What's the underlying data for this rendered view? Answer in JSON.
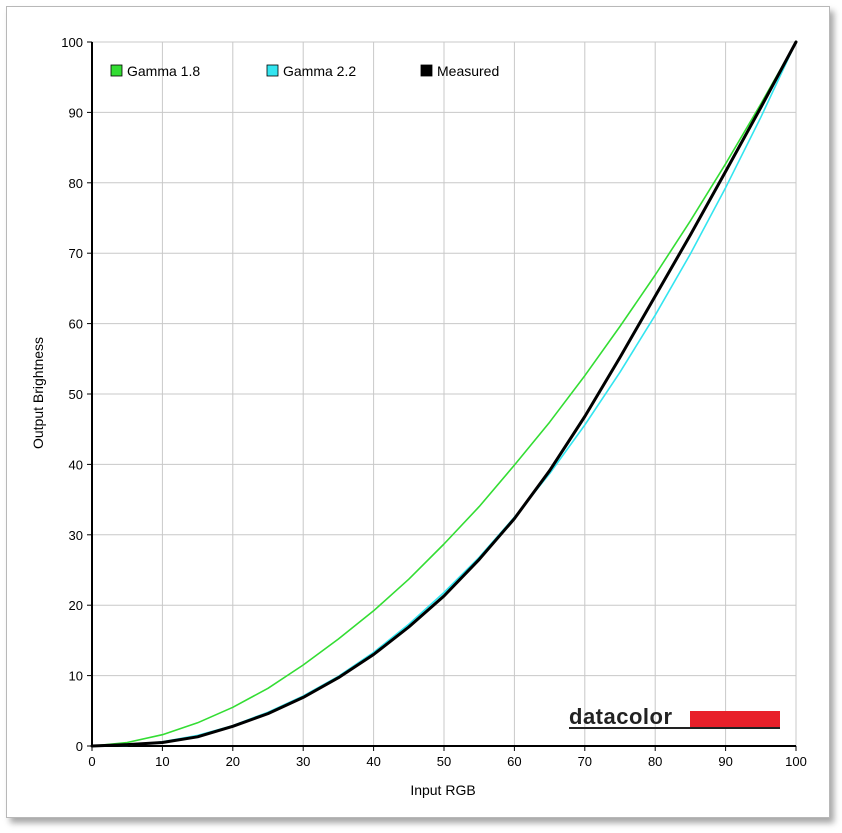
{
  "chart_data": {
    "type": "line",
    "title": "",
    "xlabel": "Input RGB",
    "ylabel": "Output Brightness",
    "xlim": [
      0,
      100
    ],
    "ylim": [
      0,
      100
    ],
    "xticks": [
      0,
      10,
      20,
      30,
      40,
      50,
      60,
      70,
      80,
      90,
      100
    ],
    "yticks": [
      0,
      10,
      20,
      30,
      40,
      50,
      60,
      70,
      80,
      90,
      100
    ],
    "grid": true,
    "legend_position": "top-left",
    "series": [
      {
        "name": "Gamma 1.8",
        "color": "#33dd33",
        "x": [
          0,
          5,
          10,
          15,
          20,
          25,
          30,
          35,
          40,
          45,
          50,
          55,
          60,
          65,
          70,
          75,
          80,
          85,
          90,
          95,
          100
        ],
        "y": [
          0,
          0.5,
          1.6,
          3.3,
          5.5,
          8.2,
          11.5,
          15.2,
          19.2,
          23.7,
          28.7,
          34.0,
          39.9,
          46.0,
          52.6,
          59.6,
          66.9,
          74.6,
          82.7,
          91.2,
          100
        ]
      },
      {
        "name": "Gamma 2.2",
        "color": "#33e5f0",
        "x": [
          0,
          5,
          10,
          15,
          20,
          25,
          30,
          35,
          40,
          45,
          50,
          55,
          60,
          65,
          70,
          75,
          80,
          85,
          90,
          95,
          100
        ],
        "y": [
          0,
          0.1,
          0.6,
          1.5,
          2.9,
          4.8,
          7.1,
          9.9,
          13.3,
          17.3,
          21.8,
          26.8,
          32.5,
          38.7,
          45.6,
          53.1,
          61.2,
          69.9,
          79.3,
          89.3,
          100
        ]
      },
      {
        "name": "Measured",
        "color": "#000000",
        "x": [
          0,
          5,
          10,
          15,
          20,
          25,
          30,
          35,
          40,
          45,
          50,
          55,
          60,
          65,
          70,
          75,
          80,
          85,
          90,
          95,
          100
        ],
        "y": [
          0,
          0.2,
          0.5,
          1.3,
          2.8,
          4.6,
          6.9,
          9.7,
          13.0,
          16.9,
          21.3,
          26.5,
          32.3,
          39.1,
          46.8,
          55.2,
          63.9,
          72.6,
          81.6,
          90.7,
          100
        ]
      }
    ]
  },
  "logo": {
    "text": "datacolor",
    "bar_color": "#e8202a"
  }
}
